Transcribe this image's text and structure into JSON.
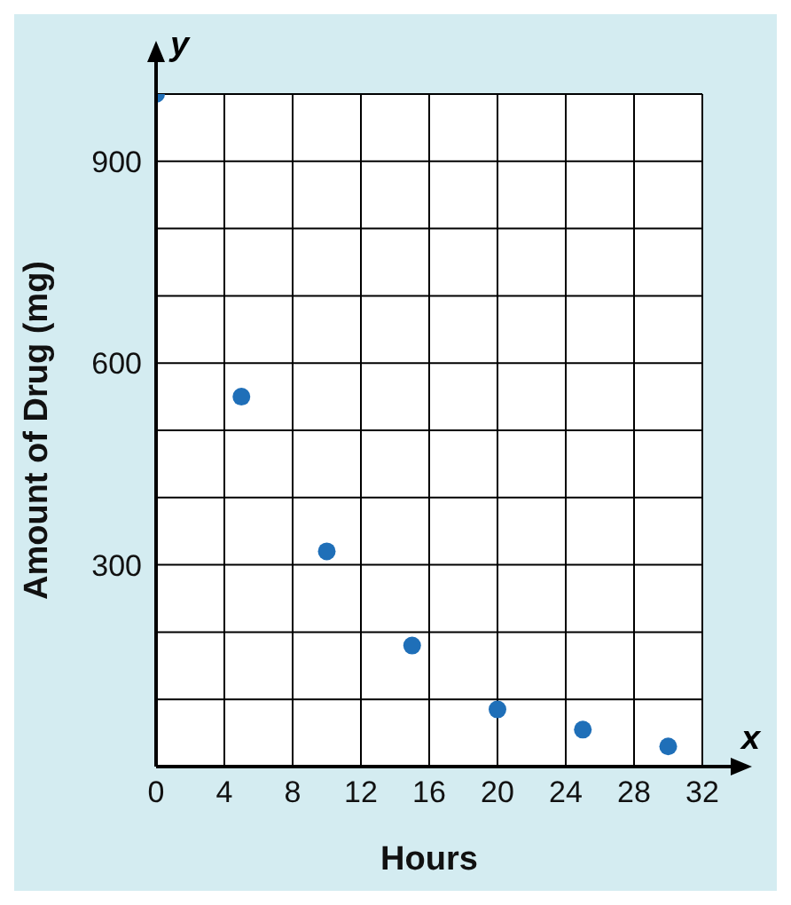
{
  "chart_data": {
    "type": "scatter",
    "xlabel": "Hours",
    "ylabel": "Amount of Drug (mg)",
    "annotations": [
      "y",
      "x"
    ],
    "x": [
      0,
      5,
      10,
      15,
      20,
      25,
      30
    ],
    "series": [
      {
        "color": "#1f6fb8",
        "values": [
          1000,
          550,
          320,
          180,
          85,
          55,
          30
        ]
      }
    ],
    "xlim": [
      0,
      32
    ],
    "ylim": [
      0,
      1000
    ],
    "xticks": [
      0,
      4,
      8,
      12,
      16,
      20,
      24,
      28,
      32
    ],
    "yticks": [
      {
        "value": 0,
        "label": null
      },
      {
        "value": 100,
        "label": null
      },
      {
        "value": 200,
        "label": null
      },
      300,
      {
        "value": 400,
        "label": null
      },
      {
        "value": 500,
        "label": null
      },
      600,
      {
        "value": 700,
        "label": null
      },
      {
        "value": 800,
        "label": null
      },
      900,
      {
        "value": 1000,
        "label": null
      }
    ],
    "grid": true,
    "marker": "circle",
    "legend": false
  }
}
